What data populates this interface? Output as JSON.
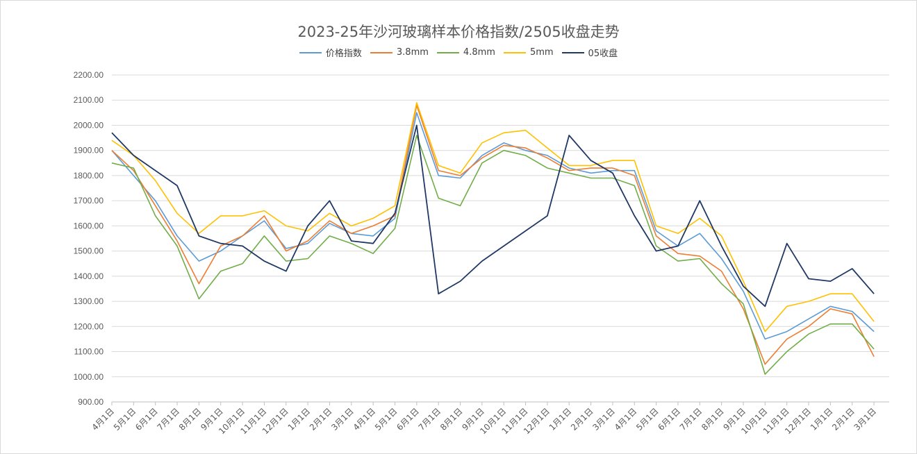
{
  "chart_data": {
    "type": "line",
    "title": "2023-25年沙河玻璃样本价格指数/2505收盘走势",
    "ylim": [
      900,
      2200
    ],
    "yticks": [
      "900.00",
      "1000.00",
      "1100.00",
      "1200.00",
      "1300.00",
      "1400.00",
      "1500.00",
      "1600.00",
      "1700.00",
      "1800.00",
      "1900.00",
      "2000.00",
      "2100.00",
      "2200.00"
    ],
    "categories": [
      "4月1日",
      "5月1日",
      "6月1日",
      "7月1日",
      "8月1日",
      "9月1日",
      "10月1日",
      "11月1日",
      "12月1日",
      "1月1日",
      "2月1日",
      "3月1日",
      "4月1日",
      "5月1日",
      "6月1日",
      "7月1日",
      "8月1日",
      "9月1日",
      "10月1日",
      "11月1日",
      "12月1日",
      "1月1日",
      "2月1日",
      "3月1日",
      "4月1日",
      "5月1日",
      "6月1日",
      "7月1日",
      "8月1日",
      "9月1日",
      "10月1日",
      "11月1日",
      "12月1日",
      "1月1日",
      "2月1日",
      "3月1日"
    ],
    "legend_position": "top",
    "grid": true,
    "series": [
      {
        "name": "价格指数",
        "color": "#5b9bd5",
        "values": [
          1900,
          1800,
          1700,
          1560,
          1460,
          1500,
          1560,
          1620,
          1510,
          1530,
          1610,
          1570,
          1560,
          1630,
          2050,
          1800,
          1790,
          1880,
          1930,
          1900,
          1880,
          1830,
          1810,
          1820,
          1820,
          1580,
          1520,
          1570,
          1470,
          1340,
          1150,
          1180,
          1230,
          1280,
          1260,
          1180
        ]
      },
      {
        "name": "3.8mm",
        "color": "#ed7d31",
        "values": [
          1900,
          1820,
          1680,
          1540,
          1370,
          1520,
          1560,
          1640,
          1500,
          1540,
          1620,
          1570,
          1600,
          1640,
          2080,
          1820,
          1800,
          1870,
          1920,
          1910,
          1870,
          1820,
          1830,
          1830,
          1800,
          1560,
          1490,
          1480,
          1420,
          1270,
          1050,
          1150,
          1200,
          1270,
          1250,
          1080
        ]
      },
      {
        "name": "4.8mm",
        "color": "#70ad47",
        "values": [
          1850,
          1830,
          1640,
          1520,
          1310,
          1420,
          1450,
          1560,
          1460,
          1470,
          1560,
          1530,
          1490,
          1590,
          1960,
          1710,
          1680,
          1850,
          1900,
          1880,
          1830,
          1810,
          1790,
          1790,
          1760,
          1520,
          1460,
          1470,
          1370,
          1290,
          1010,
          1100,
          1170,
          1210,
          1210,
          1110
        ]
      },
      {
        "name": "5mm",
        "color": "#ffc000",
        "values": [
          1940,
          1880,
          1780,
          1650,
          1570,
          1640,
          1640,
          1660,
          1600,
          1580,
          1650,
          1600,
          1630,
          1680,
          2090,
          1840,
          1810,
          1930,
          1970,
          1980,
          1910,
          1840,
          1840,
          1860,
          1860,
          1600,
          1570,
          1630,
          1560,
          1380,
          1180,
          1280,
          1300,
          1330,
          1330,
          1220
        ]
      },
      {
        "name": "05收盘",
        "color": "#1f3864",
        "values": [
          1970,
          1880,
          1820,
          1760,
          1560,
          1530,
          1520,
          1460,
          1420,
          1600,
          1700,
          1540,
          1530,
          1650,
          2000,
          1330,
          1380,
          1460,
          1520,
          1580,
          1640,
          1960,
          1860,
          1810,
          1640,
          1500,
          1520,
          1700,
          1520,
          1360,
          1280,
          1530,
          1390,
          1380,
          1430,
          1330
        ]
      }
    ]
  }
}
